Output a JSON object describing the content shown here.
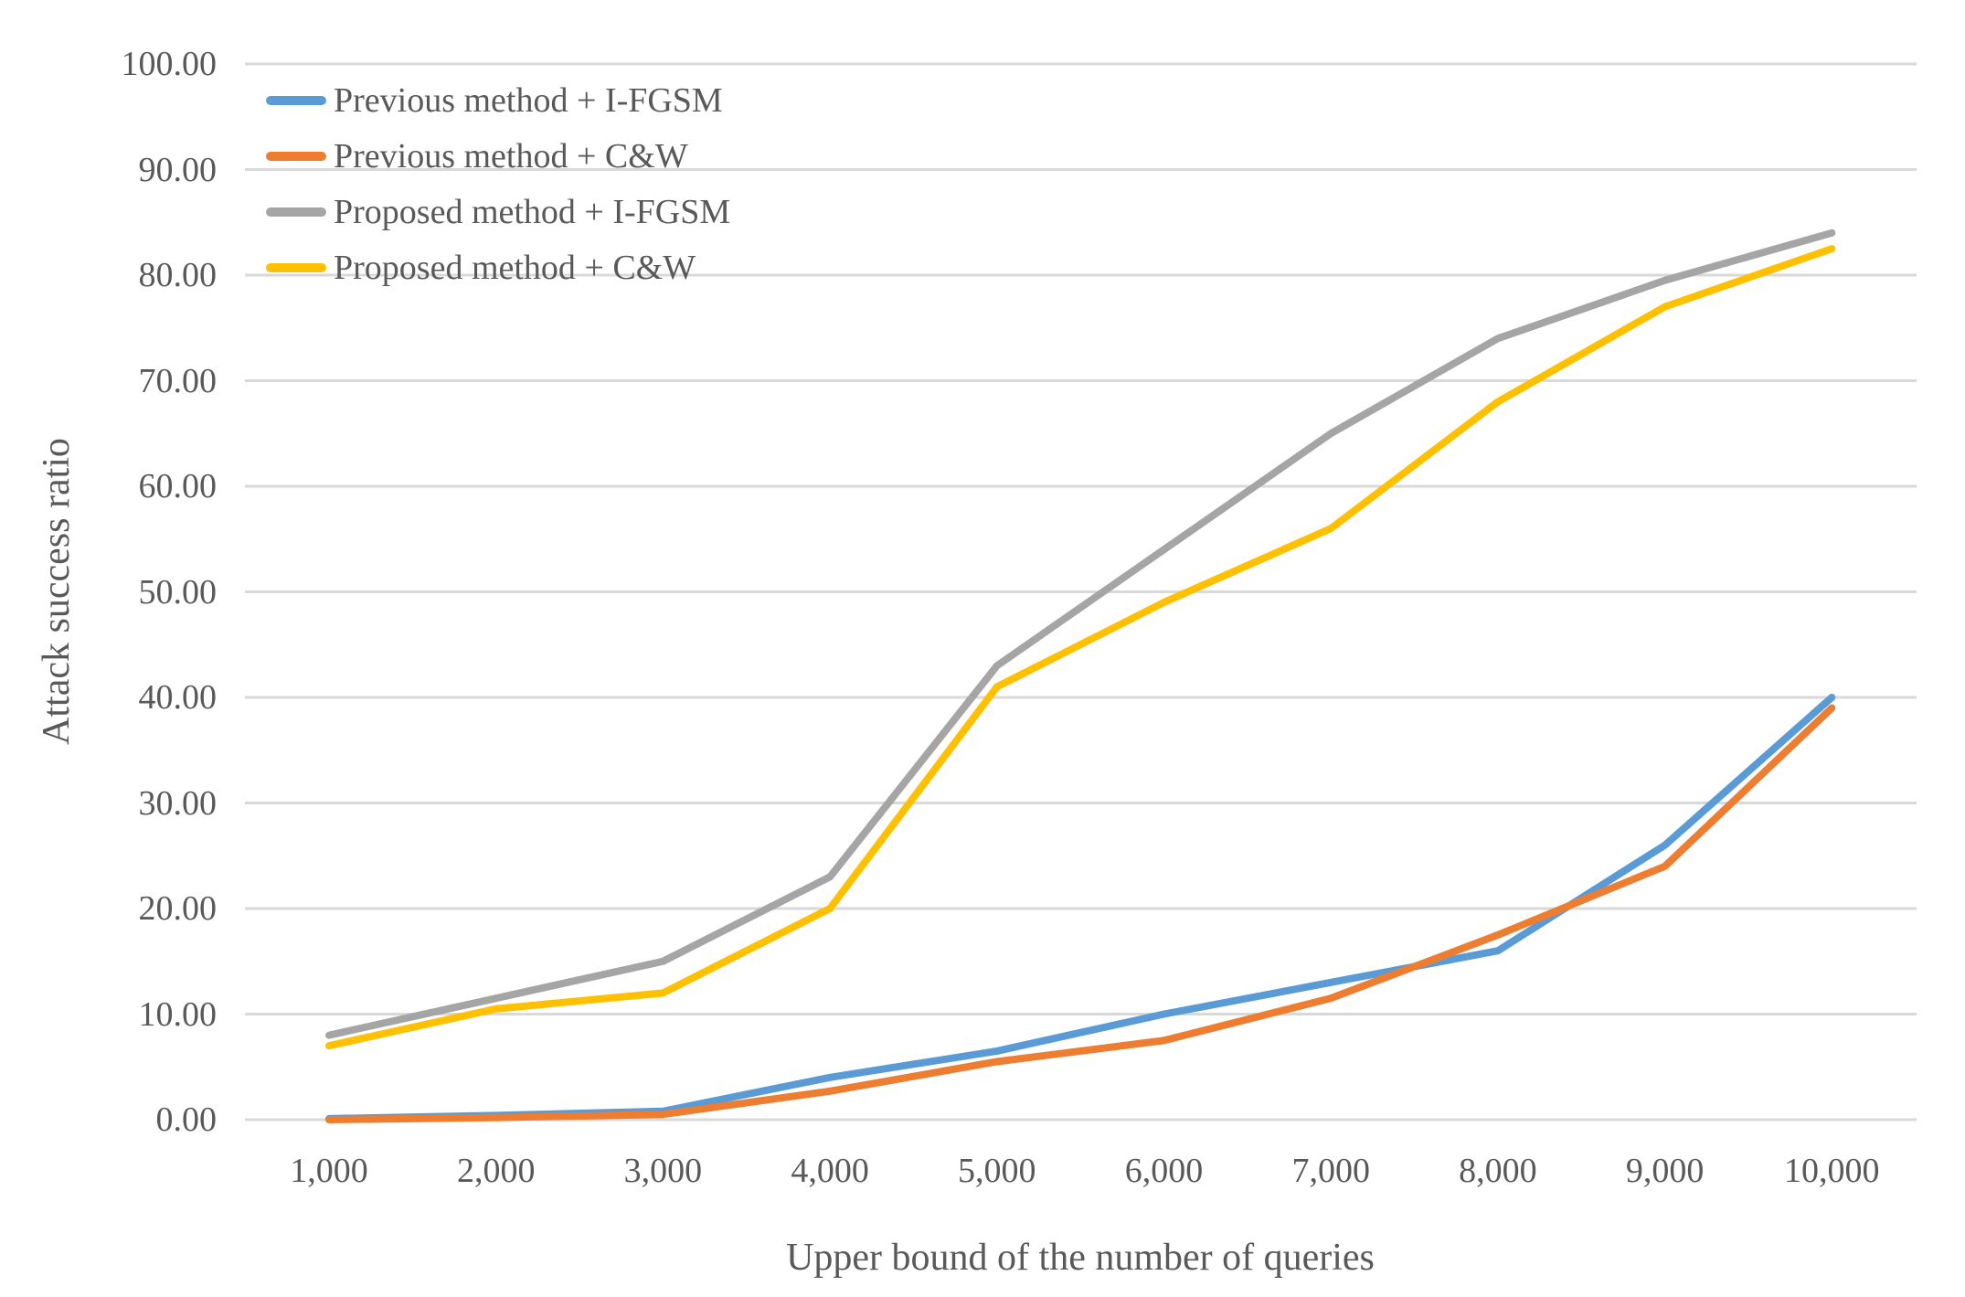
{
  "colors": {
    "background": "#ffffff",
    "gridline": "#D9D9D9",
    "axis_text": "#595959"
  },
  "chart_data": {
    "type": "line",
    "title": "",
    "xlabel": "Upper bound of the number of queries",
    "ylabel": "Attack success ratio",
    "x": [
      1000,
      2000,
      3000,
      4000,
      5000,
      6000,
      7000,
      8000,
      9000,
      10000
    ],
    "x_tick_labels": [
      "1,000",
      "2,000",
      "3,000",
      "4,000",
      "5,000",
      "6,000",
      "7,000",
      "8,000",
      "9,000",
      "10,000"
    ],
    "y_tick_labels": [
      "0.00",
      "10.00",
      "20.00",
      "30.00",
      "40.00",
      "50.00",
      "60.00",
      "70.00",
      "80.00",
      "90.00",
      "100.00"
    ],
    "ylim": [
      0,
      100
    ],
    "grid": "horizontal",
    "legend_position": "top-left-inside",
    "series": [
      {
        "name": "Previous method + I-FGSM",
        "color": "#5B9BD5",
        "values": [
          0.1,
          0.4,
          0.8,
          4,
          6.5,
          10,
          13,
          16,
          26,
          40
        ]
      },
      {
        "name": "Previous method + C&W",
        "color": "#ED7D31",
        "values": [
          0,
          0.2,
          0.5,
          2.7,
          5.5,
          7.5,
          11.5,
          17.5,
          24,
          39
        ]
      },
      {
        "name": "Proposed method + I-FGSM",
        "color": "#A5A5A5",
        "values": [
          8,
          11.5,
          15,
          23,
          43,
          54,
          65,
          74,
          79.5,
          84
        ]
      },
      {
        "name": "Proposed method + C&W",
        "color": "#FFC000",
        "values": [
          7,
          10.5,
          12,
          20,
          41,
          49,
          56,
          68,
          77,
          82.5
        ]
      }
    ]
  }
}
